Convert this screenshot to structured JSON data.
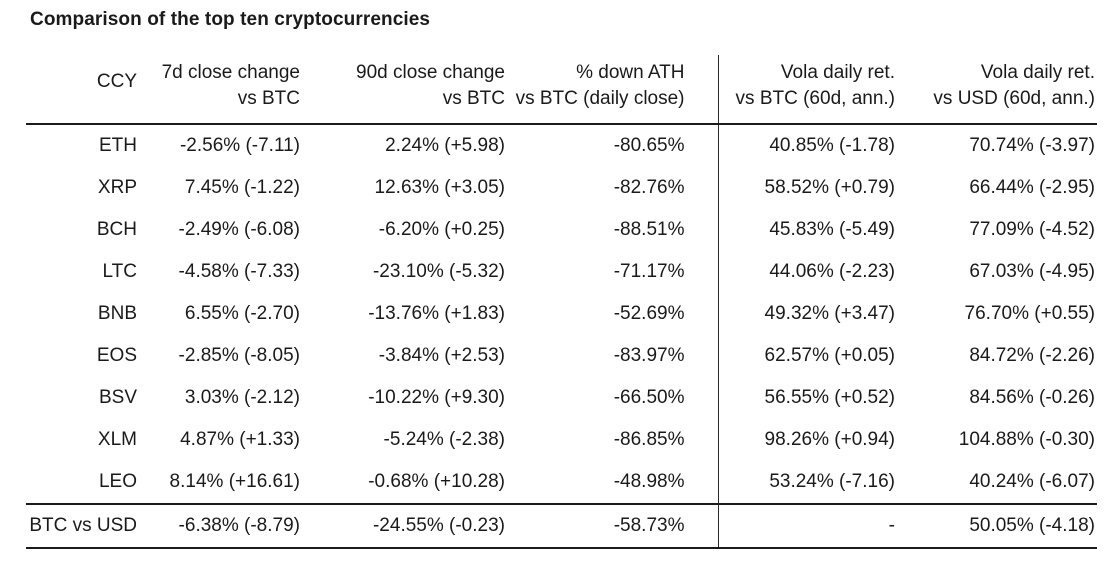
{
  "colors": {
    "background": "#ffffff",
    "text": "#1a1a1a",
    "rule": "#1a1a1a"
  },
  "chart_data": {
    "type": "table",
    "title": "Comparison of the top ten cryptocurrencies",
    "legend_position": "none",
    "grid": "header-rule, footer-rules, vertical-divider-before-volatility-columns",
    "columns": [
      {
        "id": "ccy",
        "label_line1": "CCY",
        "label_line2": ""
      },
      {
        "id": "chg7d",
        "label_line1": "7d close change",
        "label_line2": "vs BTC"
      },
      {
        "id": "chg90d",
        "label_line1": "90d close change",
        "label_line2": "vs BTC"
      },
      {
        "id": "down_ath",
        "label_line1": "% down ATH",
        "label_line2": "vs BTC (daily close)"
      },
      {
        "id": "vola_btc",
        "label_line1": "Vola daily ret.",
        "label_line2": "vs BTC (60d, ann.)"
      },
      {
        "id": "vola_usd",
        "label_line1": "Vola daily ret.",
        "label_line2": "vs USD (60d, ann.)"
      }
    ],
    "rows": [
      [
        "ETH",
        "-2.56% (-7.11)",
        "2.24% (+5.98)",
        "-80.65%",
        "40.85% (-1.78)",
        "70.74% (-3.97)"
      ],
      [
        "XRP",
        "7.45% (-1.22)",
        "12.63% (+3.05)",
        "-82.76%",
        "58.52% (+0.79)",
        "66.44% (-2.95)"
      ],
      [
        "BCH",
        "-2.49% (-6.08)",
        "-6.20% (+0.25)",
        "-88.51%",
        "45.83% (-5.49)",
        "77.09% (-4.52)"
      ],
      [
        "LTC",
        "-4.58% (-7.33)",
        "-23.10% (-5.32)",
        "-71.17%",
        "44.06% (-2.23)",
        "67.03% (-4.95)"
      ],
      [
        "BNB",
        "6.55% (-2.70)",
        "-13.76% (+1.83)",
        "-52.69%",
        "49.32% (+3.47)",
        "76.70% (+0.55)"
      ],
      [
        "EOS",
        "-2.85% (-8.05)",
        "-3.84% (+2.53)",
        "-83.97%",
        "62.57% (+0.05)",
        "84.72% (-2.26)"
      ],
      [
        "BSV",
        "3.03% (-2.12)",
        "-10.22% (+9.30)",
        "-66.50%",
        "56.55% (+0.52)",
        "84.56% (-0.26)"
      ],
      [
        "XLM",
        "4.87% (+1.33)",
        "-5.24% (-2.38)",
        "-86.85%",
        "98.26% (+0.94)",
        "104.88% (-0.30)"
      ],
      [
        "LEO",
        "8.14% (+16.61)",
        "-0.68% (+10.28)",
        "-48.98%",
        "53.24% (-7.16)",
        "40.24% (-6.07)"
      ]
    ],
    "footer_row": [
      "BTC vs USD",
      "-6.38% (-8.79)",
      "-24.55% (-0.23)",
      "-58.73%",
      "-",
      "50.05% (-4.18)"
    ]
  }
}
